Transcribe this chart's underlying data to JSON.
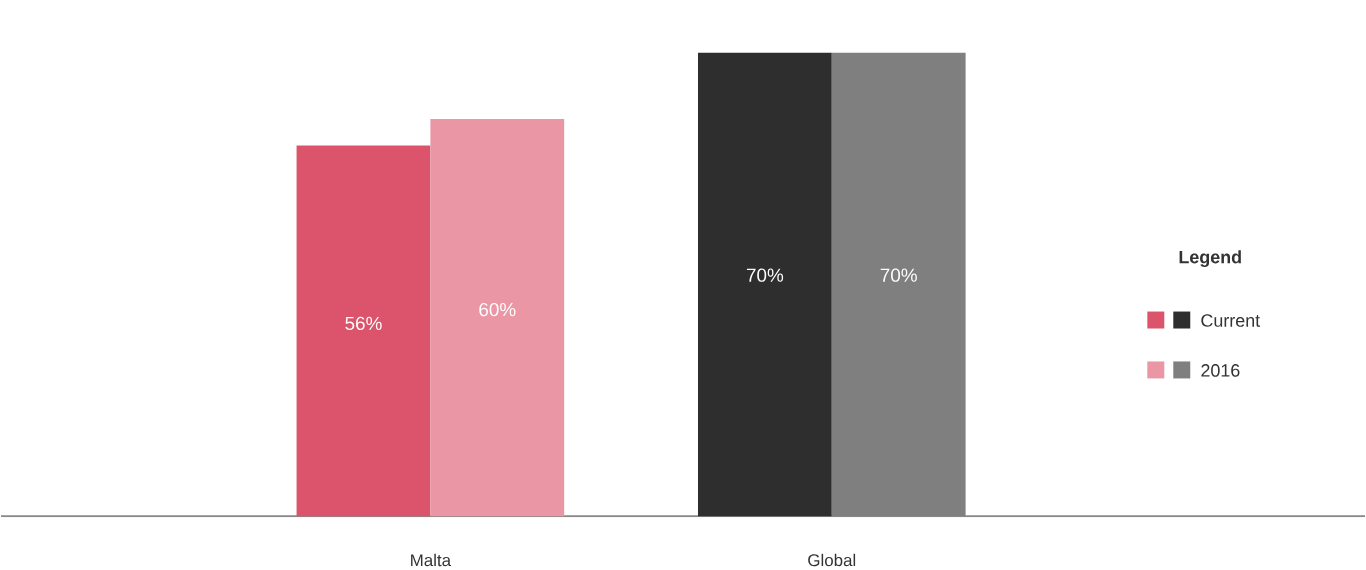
{
  "chart_data": {
    "type": "bar",
    "categories": [
      "Malta",
      "Global"
    ],
    "legend_title": "Legend",
    "legend": "right",
    "series": [
      {
        "name": "Current",
        "colors": [
          "#dc546b",
          "#2e2e2e"
        ],
        "values": [
          56,
          70
        ],
        "value_labels": [
          "56%",
          "70%"
        ]
      },
      {
        "name": "2016",
        "colors": [
          "#ea96a5",
          "#7f7f7f"
        ],
        "values": [
          60,
          70
        ],
        "value_labels": [
          "60%",
          "70%"
        ]
      }
    ]
  }
}
